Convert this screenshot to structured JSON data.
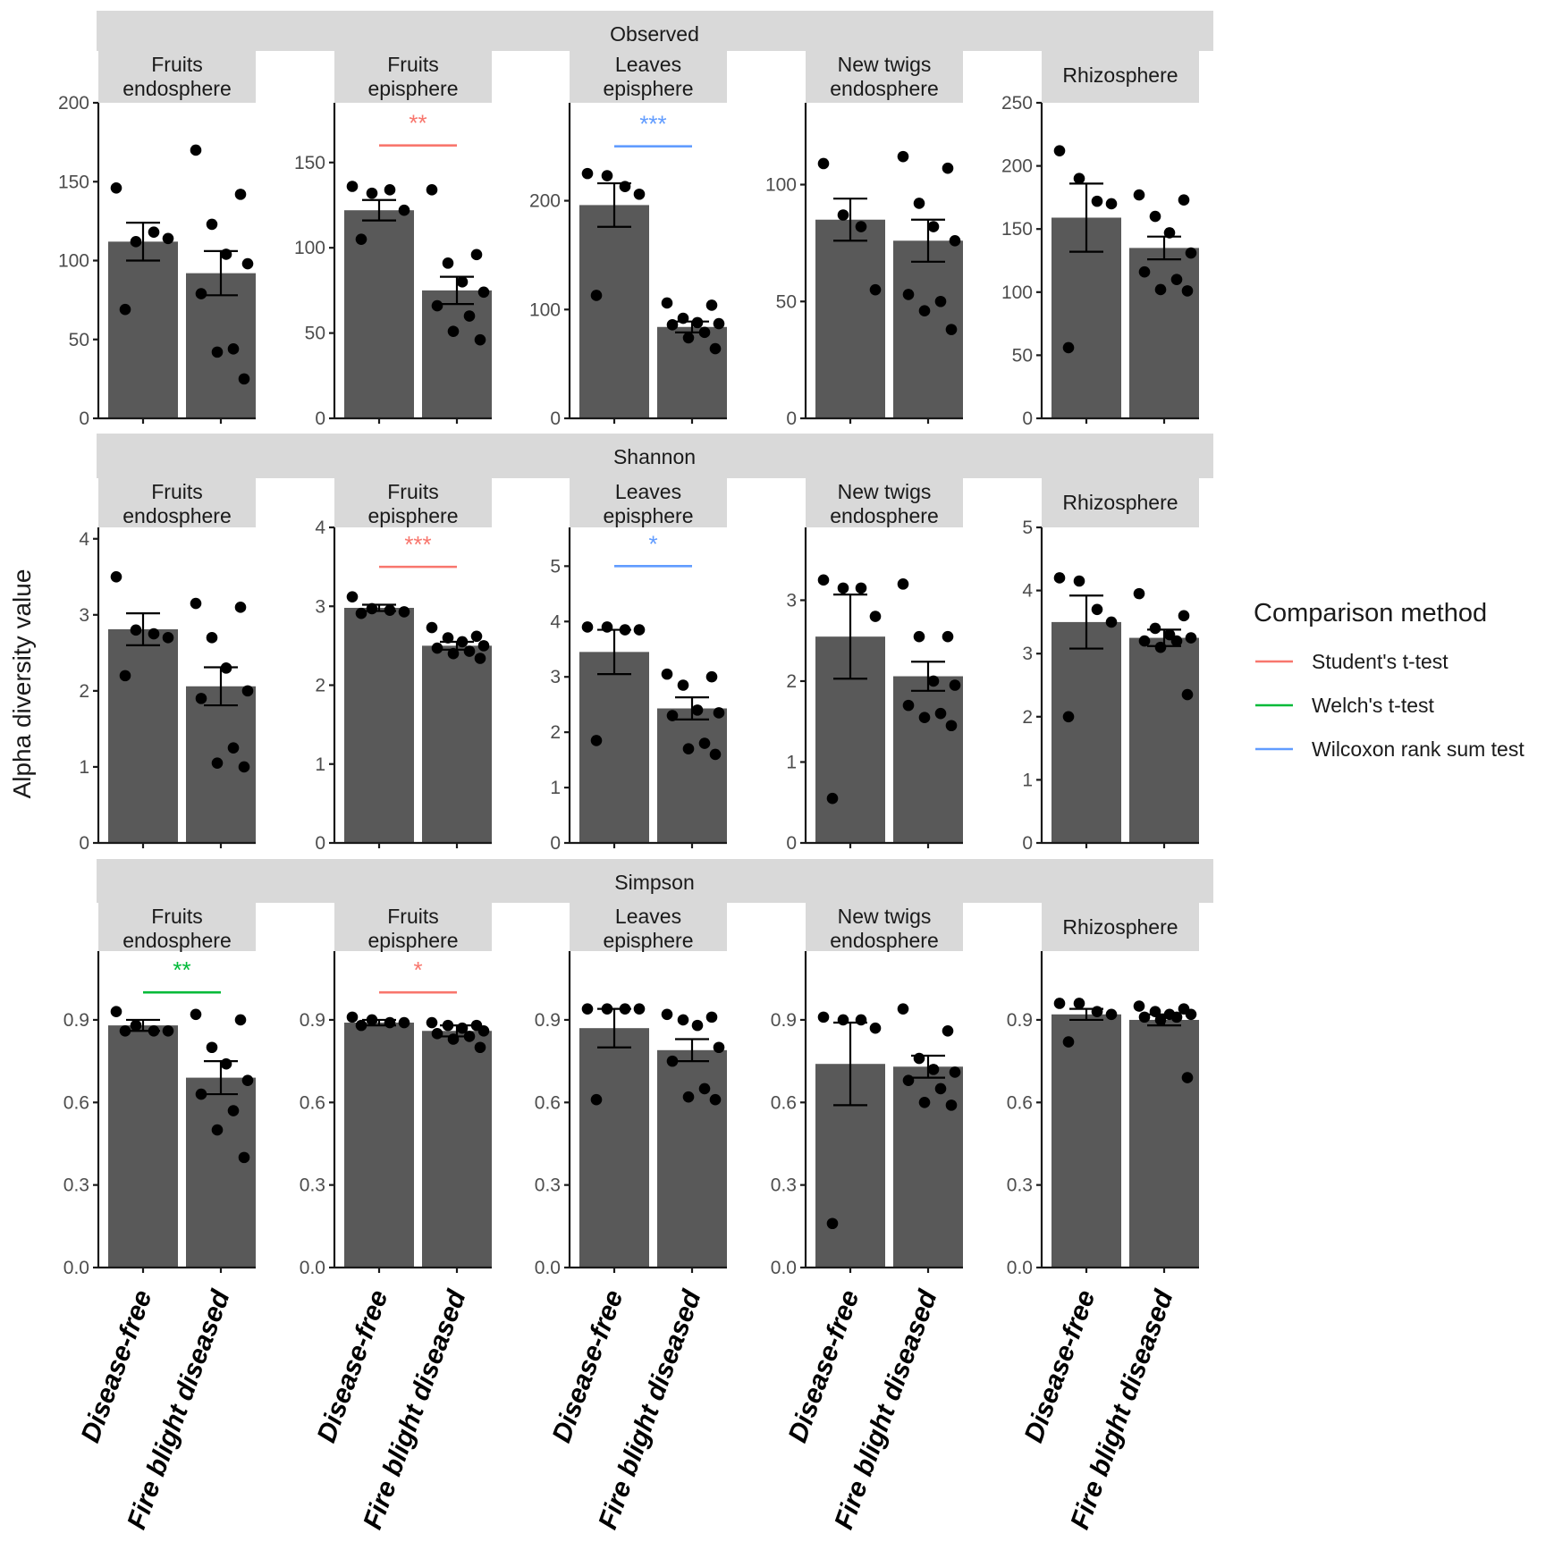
{
  "chart_data": {
    "type": "bar",
    "y_axis_title": "Alpha diversity value",
    "x_categories": [
      "Disease-free",
      "Fire blight diseased"
    ],
    "legend": {
      "title": "Comparison method",
      "position": "right",
      "items": [
        {
          "label": "Student's t-test",
          "color": "#f8766d"
        },
        {
          "label": "Welch's t-test",
          "color": "#00ba38"
        },
        {
          "label": "Wilcoxon rank sum test",
          "color": "#619cff"
        }
      ]
    },
    "colors": {
      "bar": "#595959",
      "strip": "#d9d9d9",
      "point": "#000000"
    },
    "rows": [
      {
        "metric": "Observed",
        "panels": [
          {
            "label": "Fruits\nendosphere",
            "ylim": [
              0,
              200
            ],
            "ticks": [
              0,
              50,
              100,
              150,
              200
            ],
            "bars": [
              {
                "mean": 112,
                "se": 12
              },
              {
                "mean": 92,
                "se": 14
              }
            ],
            "points": [
              [
                146,
                112,
                118,
                114,
                69
              ],
              [
                170,
                142,
                123,
                104,
                98,
                79,
                44,
                42,
                25
              ]
            ],
            "significance": null
          },
          {
            "label": "Fruits\nepisphere",
            "ylim": [
              0,
              185
            ],
            "ticks": [
              0,
              50,
              100,
              150
            ],
            "bars": [
              {
                "mean": 122,
                "se": 6
              },
              {
                "mean": 75,
                "se": 8
              }
            ],
            "points": [
              [
                136,
                132,
                134,
                122,
                105
              ],
              [
                134,
                96,
                91,
                80,
                74,
                66,
                60,
                51,
                46
              ]
            ],
            "significance": {
              "label": "**",
              "method": "Student's t-test",
              "y": 160
            }
          },
          {
            "label": "Leaves\nepisphere",
            "ylim": [
              0,
              290
            ],
            "ticks": [
              0,
              100,
              200
            ],
            "bars": [
              {
                "mean": 196,
                "se": 20
              },
              {
                "mean": 84,
                "se": 5
              }
            ],
            "points": [
              [
                225,
                223,
                213,
                206,
                113
              ],
              [
                106,
                104,
                92,
                88,
                87,
                86,
                79,
                74,
                64
              ]
            ],
            "significance": {
              "label": "***",
              "method": "Wilcoxon rank sum test",
              "y": 250
            }
          },
          {
            "label": "New twigs\nendosphere",
            "ylim": [
              0,
              135
            ],
            "ticks": [
              0,
              50,
              100
            ],
            "bars": [
              {
                "mean": 85,
                "se": 9
              },
              {
                "mean": 76,
                "se": 9
              }
            ],
            "points": [
              [
                109,
                87,
                82,
                55
              ],
              [
                112,
                107,
                92,
                82,
                76,
                53,
                50,
                46,
                38
              ]
            ],
            "significance": null
          },
          {
            "label": "Rhizosphere",
            "ylim": [
              0,
              250
            ],
            "ticks": [
              0,
              50,
              100,
              150,
              200,
              250
            ],
            "bars": [
              {
                "mean": 159,
                "se": 27
              },
              {
                "mean": 135,
                "se": 9
              }
            ],
            "points": [
              [
                212,
                190,
                172,
                170,
                56
              ],
              [
                177,
                173,
                160,
                147,
                131,
                116,
                110,
                102,
                101
              ]
            ],
            "significance": null
          }
        ]
      },
      {
        "metric": "Shannon",
        "panels": [
          {
            "label": "Fruits\nendosphere",
            "ylim": [
              0,
              4.15
            ],
            "ticks": [
              0,
              1,
              2,
              3,
              4
            ],
            "bars": [
              {
                "mean": 2.81,
                "se": 0.21
              },
              {
                "mean": 2.06,
                "se": 0.25
              }
            ],
            "points": [
              [
                3.5,
                2.8,
                2.75,
                2.7,
                2.2
              ],
              [
                3.15,
                3.1,
                2.7,
                2.3,
                2.0,
                1.9,
                1.25,
                1.05,
                1.0
              ]
            ],
            "significance": null
          },
          {
            "label": "Fruits\nepisphere",
            "ylim": [
              0,
              4.0
            ],
            "ticks": [
              0,
              1,
              2,
              3,
              4
            ],
            "bars": [
              {
                "mean": 2.98,
                "se": 0.04
              },
              {
                "mean": 2.5,
                "se": 0.05
              }
            ],
            "points": [
              [
                3.12,
                2.97,
                2.95,
                2.93,
                2.91
              ],
              [
                2.73,
                2.62,
                2.6,
                2.55,
                2.5,
                2.47,
                2.43,
                2.4,
                2.34
              ]
            ],
            "significance": {
              "label": "***",
              "method": "Student's t-test",
              "y": 3.5
            }
          },
          {
            "label": "Leaves\nepisphere",
            "ylim": [
              0,
              5.7
            ],
            "ticks": [
              0,
              1,
              2,
              3,
              4,
              5
            ],
            "bars": [
              {
                "mean": 3.45,
                "se": 0.4
              },
              {
                "mean": 2.43,
                "se": 0.2
              }
            ],
            "points": [
              [
                3.9,
                3.9,
                3.85,
                3.85,
                1.85
              ],
              [
                3.05,
                3.0,
                2.85,
                2.4,
                2.35,
                2.3,
                1.8,
                1.7,
                1.6
              ]
            ],
            "significance": {
              "label": "*",
              "method": "Wilcoxon rank sum test",
              "y": 5.0
            }
          },
          {
            "label": "New twigs\nendosphere",
            "ylim": [
              0,
              3.9
            ],
            "ticks": [
              0,
              1,
              2,
              3
            ],
            "bars": [
              {
                "mean": 2.55,
                "se": 0.52
              },
              {
                "mean": 2.06,
                "se": 0.18
              }
            ],
            "points": [
              [
                3.25,
                3.15,
                3.15,
                2.8,
                0.55
              ],
              [
                3.2,
                2.55,
                2.55,
                2.0,
                1.95,
                1.7,
                1.6,
                1.55,
                1.45
              ]
            ],
            "significance": null
          },
          {
            "label": "Rhizosphere",
            "ylim": [
              0,
              5.0
            ],
            "ticks": [
              0,
              1,
              2,
              3,
              4,
              5
            ],
            "bars": [
              {
                "mean": 3.5,
                "se": 0.42
              },
              {
                "mean": 3.25,
                "se": 0.13
              }
            ],
            "points": [
              [
                4.2,
                4.15,
                3.7,
                3.5,
                2.0
              ],
              [
                3.95,
                3.6,
                3.4,
                3.3,
                3.25,
                3.2,
                3.2,
                3.1,
                2.35
              ]
            ],
            "significance": null
          }
        ]
      },
      {
        "metric": "Simpson",
        "panels": [
          {
            "label": "Fruits\nendosphere",
            "ylim": [
              0,
              1.15
            ],
            "ticks": [
              0.0,
              0.3,
              0.6,
              0.9
            ],
            "bars": [
              {
                "mean": 0.88,
                "se": 0.02
              },
              {
                "mean": 0.69,
                "se": 0.06
              }
            ],
            "points": [
              [
                0.93,
                0.88,
                0.86,
                0.86,
                0.86
              ],
              [
                0.92,
                0.9,
                0.8,
                0.74,
                0.68,
                0.63,
                0.57,
                0.5,
                0.4
              ]
            ],
            "significance": {
              "label": "**",
              "method": "Welch's t-test",
              "y": 1.0
            }
          },
          {
            "label": "Fruits\nepisphere",
            "ylim": [
              0,
              1.15
            ],
            "ticks": [
              0.0,
              0.3,
              0.6,
              0.9
            ],
            "bars": [
              {
                "mean": 0.89,
                "se": 0.01
              },
              {
                "mean": 0.86,
                "se": 0.02
              }
            ],
            "points": [
              [
                0.91,
                0.9,
                0.89,
                0.89,
                0.88
              ],
              [
                0.89,
                0.88,
                0.88,
                0.87,
                0.86,
                0.85,
                0.84,
                0.83,
                0.8
              ]
            ],
            "significance": {
              "label": "*",
              "method": "Student's t-test",
              "y": 1.0
            }
          },
          {
            "label": "Leaves\nepisphere",
            "ylim": [
              0,
              1.15
            ],
            "ticks": [
              0.0,
              0.3,
              0.6,
              0.9
            ],
            "bars": [
              {
                "mean": 0.87,
                "se": 0.07
              },
              {
                "mean": 0.79,
                "se": 0.04
              }
            ],
            "points": [
              [
                0.94,
                0.94,
                0.94,
                0.94,
                0.61
              ],
              [
                0.92,
                0.91,
                0.9,
                0.88,
                0.8,
                0.75,
                0.65,
                0.62,
                0.61
              ]
            ],
            "significance": null
          },
          {
            "label": "New twigs\nendosphere",
            "ylim": [
              0,
              1.15
            ],
            "ticks": [
              0.0,
              0.3,
              0.6,
              0.9
            ],
            "bars": [
              {
                "mean": 0.74,
                "se": 0.15
              },
              {
                "mean": 0.73,
                "se": 0.04
              }
            ],
            "points": [
              [
                0.91,
                0.9,
                0.9,
                0.87,
                0.16
              ],
              [
                0.94,
                0.86,
                0.76,
                0.72,
                0.71,
                0.68,
                0.65,
                0.6,
                0.59
              ]
            ],
            "significance": null
          },
          {
            "label": "Rhizosphere",
            "ylim": [
              0,
              1.15
            ],
            "ticks": [
              0.0,
              0.3,
              0.6,
              0.9
            ],
            "bars": [
              {
                "mean": 0.92,
                "se": 0.02
              },
              {
                "mean": 0.9,
                "se": 0.02
              }
            ],
            "points": [
              [
                0.96,
                0.96,
                0.93,
                0.92,
                0.82
              ],
              [
                0.95,
                0.94,
                0.93,
                0.92,
                0.92,
                0.91,
                0.91,
                0.9,
                0.69
              ]
            ],
            "significance": null
          }
        ]
      }
    ]
  }
}
